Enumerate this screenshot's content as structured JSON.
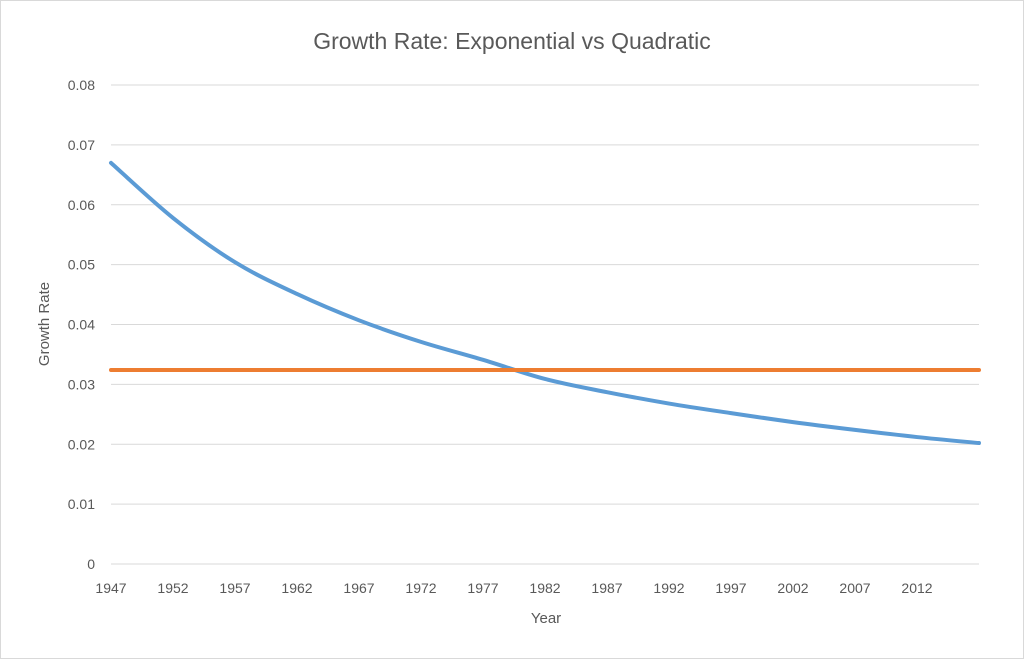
{
  "chart_data": {
    "type": "line",
    "title": "Growth Rate: Exponential vs Quadratic",
    "xlabel": "Year",
    "ylabel": "Growth Rate",
    "xlim": [
      1947,
      2017
    ],
    "ylim": [
      0,
      0.08
    ],
    "x_ticks": [
      "1947",
      "1952",
      "1957",
      "1962",
      "1967",
      "1972",
      "1977",
      "1982",
      "1987",
      "1992",
      "1997",
      "2002",
      "2007",
      "2012"
    ],
    "y_ticks": [
      "0",
      "0.01",
      "0.02",
      "0.03",
      "0.04",
      "0.05",
      "0.06",
      "0.07",
      "0.08"
    ],
    "grid": true,
    "legend": "none",
    "series": [
      {
        "color": "#5b9bd5",
        "x": [
          1947,
          1952,
          1957,
          1962,
          1967,
          1972,
          1977,
          1982,
          1987,
          1992,
          1997,
          2002,
          2007,
          2012,
          2017
        ],
        "y": [
          0.067,
          0.0578,
          0.0504,
          0.0451,
          0.0407,
          0.0371,
          0.0341,
          0.0309,
          0.0287,
          0.0268,
          0.0252,
          0.0237,
          0.0224,
          0.0212,
          0.0202
        ]
      },
      {
        "color": "#ed7d31",
        "x": [
          1947,
          2017
        ],
        "y": [
          0.0324,
          0.0324
        ]
      }
    ]
  }
}
